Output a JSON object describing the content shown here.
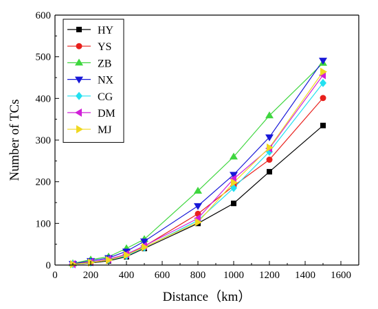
{
  "chart_data": {
    "type": "line",
    "title": "",
    "xlabel": "Distance（km）",
    "ylabel": "Number of TCs",
    "xlim": [
      0,
      1700
    ],
    "ylim": [
      0,
      600
    ],
    "xticks": [
      0,
      200,
      400,
      600,
      800,
      1000,
      1200,
      1400,
      1600
    ],
    "yticks": [
      0,
      100,
      200,
      300,
      400,
      500,
      600
    ],
    "legend_position": "top-left",
    "grid": false,
    "x": [
      100,
      200,
      300,
      400,
      500,
      800,
      1000,
      1200,
      1500
    ],
    "series": [
      {
        "name": "HY",
        "color": "#000000",
        "marker": "square",
        "values": [
          2,
          5,
          10,
          20,
          40,
          100,
          148,
          224,
          335
        ]
      },
      {
        "name": "YS",
        "color": "#e8201c",
        "marker": "circle",
        "values": [
          3,
          7,
          13,
          25,
          45,
          123,
          190,
          253,
          401
        ]
      },
      {
        "name": "ZB",
        "color": "#3ed63e",
        "marker": "triangle-up",
        "values": [
          4,
          13,
          20,
          40,
          62,
          178,
          260,
          359,
          485
        ]
      },
      {
        "name": "NX",
        "color": "#1818d8",
        "marker": "triangle-down",
        "values": [
          3,
          10,
          17,
          33,
          57,
          142,
          217,
          307,
          491
        ]
      },
      {
        "name": "CG",
        "color": "#22e0f0",
        "marker": "diamond",
        "values": [
          2,
          6,
          12,
          22,
          42,
          107,
          185,
          272,
          437
        ]
      },
      {
        "name": "DM",
        "color": "#d020d8",
        "marker": "triangle-left",
        "values": [
          2,
          7,
          14,
          26,
          46,
          112,
          207,
          280,
          456
        ]
      },
      {
        "name": "MJ",
        "color": "#f0d820",
        "marker": "triangle-right",
        "values": [
          2,
          6,
          12,
          24,
          43,
          103,
          198,
          282,
          464
        ]
      }
    ]
  }
}
